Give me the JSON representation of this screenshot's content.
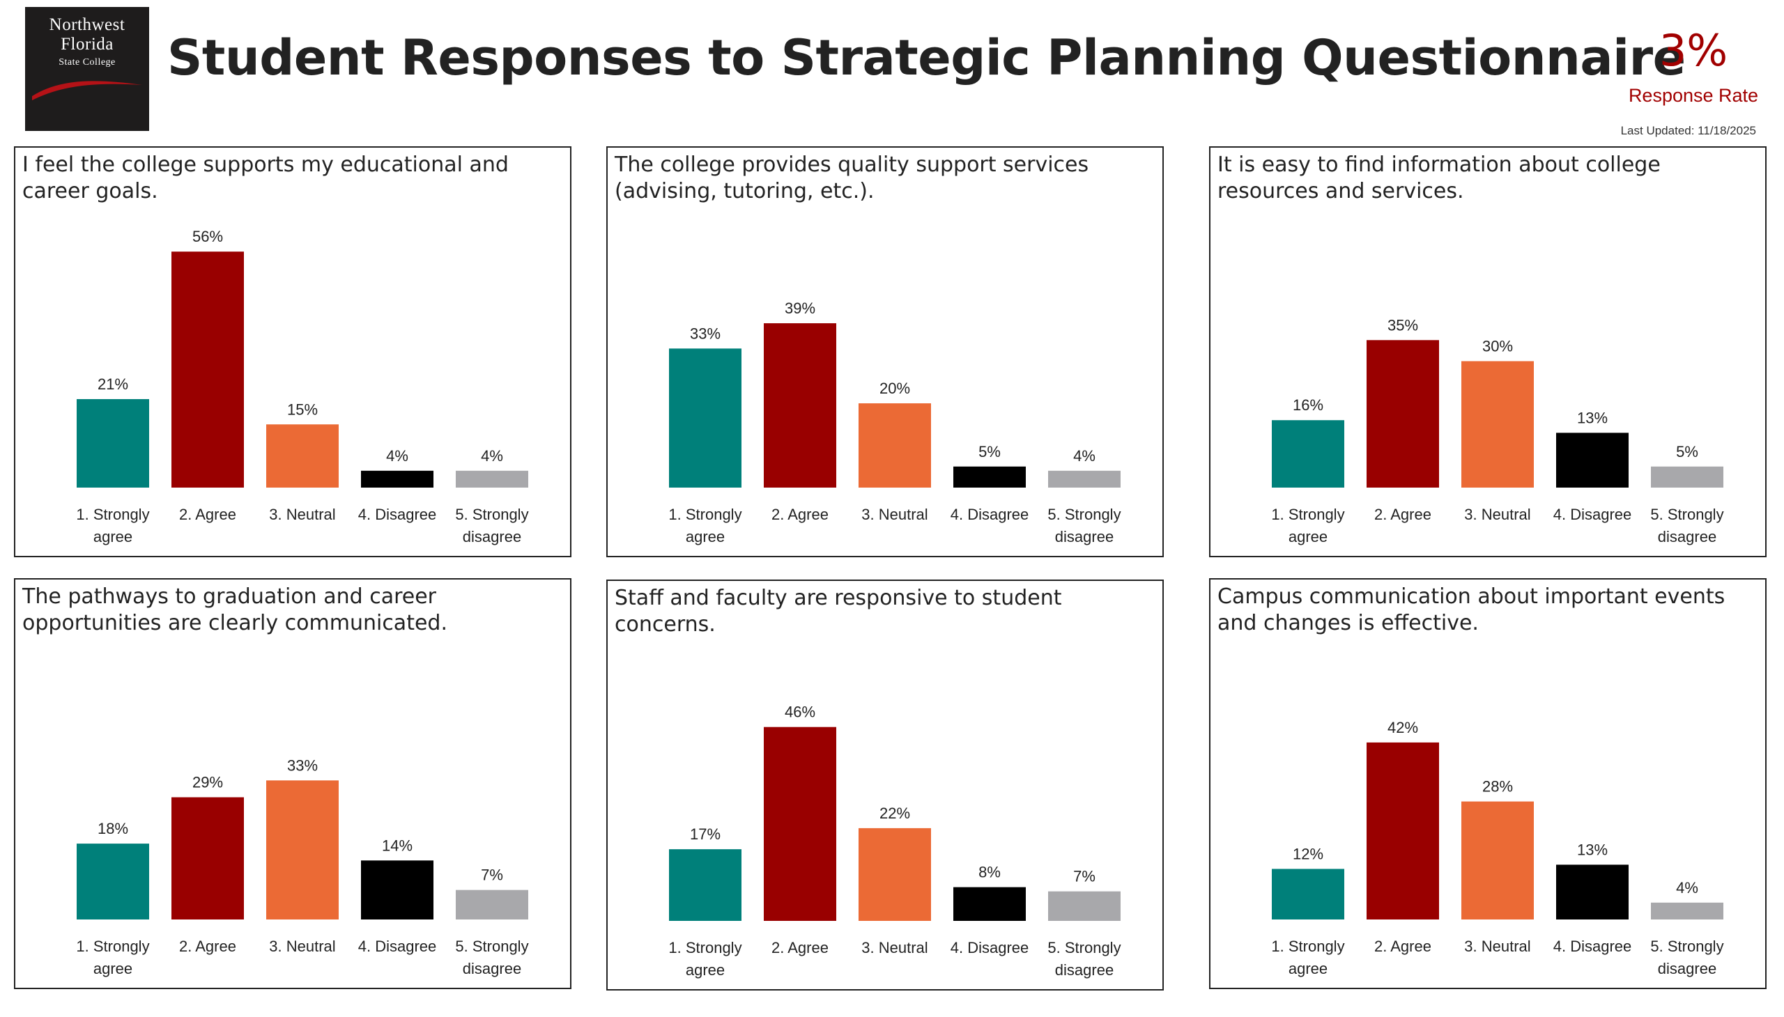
{
  "header": {
    "logo": {
      "line1": "Northwest",
      "line2": "Florida",
      "line3": "State College",
      "swoosh_color": "#b51217"
    },
    "title": "Student Responses to Strategic Planning Questionnaire",
    "response_rate": {
      "value": "3%",
      "label": "Response Rate"
    },
    "last_updated": "Last Updated: 11/18/2025"
  },
  "colors": {
    "strongly_agree": "#00807a",
    "agree": "#990000",
    "neutral": "#eb6a35",
    "disagree": "#000000",
    "strongly_disagree": "#a8a8ab"
  },
  "chart_data": [
    {
      "type": "bar",
      "title": "I feel the college supports my educational and career goals.",
      "categories": [
        "1. Strongly agree",
        "2. Agree",
        "3. Neutral",
        "4. Disagree",
        "5. Strongly disagree"
      ],
      "values": [
        21,
        56,
        15,
        4,
        4
      ],
      "data_labels": [
        "21%",
        "56%",
        "15%",
        "4%",
        "4%"
      ]
    },
    {
      "type": "bar",
      "title": "The college provides quality support services (advising, tutoring, etc.).",
      "categories": [
        "1. Strongly agree",
        "2. Agree",
        "3. Neutral",
        "4. Disagree",
        "5. Strongly disagree"
      ],
      "values": [
        33,
        39,
        20,
        5,
        4
      ],
      "data_labels": [
        "33%",
        "39%",
        "20%",
        "5%",
        "4%"
      ]
    },
    {
      "type": "bar",
      "title": "It is easy to find information about college resources and services.",
      "categories": [
        "1. Strongly agree",
        "2. Agree",
        "3. Neutral",
        "4. Disagree",
        "5. Strongly disagree"
      ],
      "values": [
        16,
        35,
        30,
        13,
        5
      ],
      "data_labels": [
        "16%",
        "35%",
        "30%",
        "13%",
        "5%"
      ]
    },
    {
      "type": "bar",
      "title": "The pathways to graduation and career opportunities are clearly communicated.",
      "categories": [
        "1. Strongly agree",
        "2. Agree",
        "3. Neutral",
        "4. Disagree",
        "5. Strongly disagree"
      ],
      "values": [
        18,
        29,
        33,
        14,
        7
      ],
      "data_labels": [
        "18%",
        "29%",
        "33%",
        "14%",
        "7%"
      ]
    },
    {
      "type": "bar",
      "title": "Staff and faculty are responsive to student concerns.",
      "categories": [
        "1. Strongly agree",
        "2. Agree",
        "3. Neutral",
        "4. Disagree",
        "5. Strongly disagree"
      ],
      "values": [
        17,
        46,
        22,
        8,
        7
      ],
      "data_labels": [
        "17%",
        "46%",
        "22%",
        "8%",
        "7%"
      ]
    },
    {
      "type": "bar",
      "title": "Campus communication about important events and changes is effective.",
      "categories": [
        "1. Strongly agree",
        "2. Agree",
        "3. Neutral",
        "4. Disagree",
        "5. Strongly disagree"
      ],
      "values": [
        12,
        42,
        28,
        13,
        4
      ],
      "data_labels": [
        "12%",
        "42%",
        "28%",
        "13%",
        "4%"
      ]
    }
  ]
}
